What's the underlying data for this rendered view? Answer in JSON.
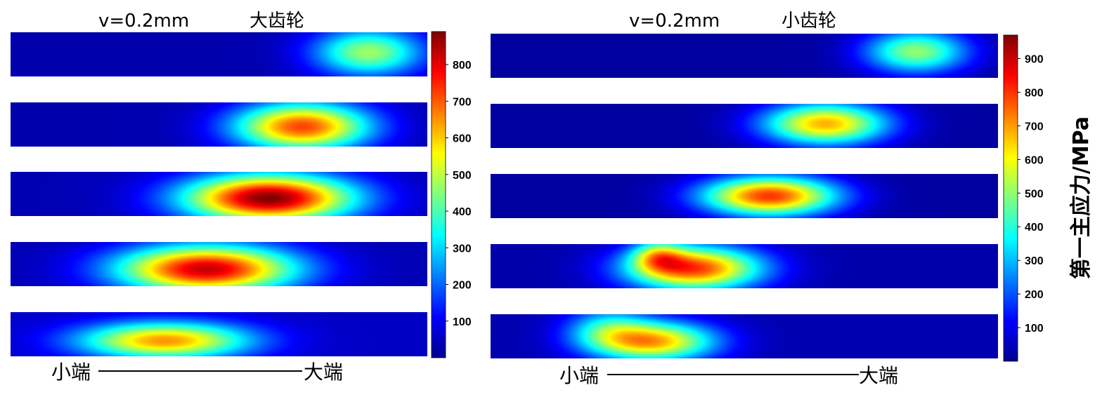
{
  "chart_data": [
    {
      "type": "heatmap",
      "title_speed": "v=0.2mm",
      "title_gear": "大齿轮",
      "colorbar_ticks": [
        100,
        200,
        300,
        400,
        500,
        600,
        700,
        800
      ],
      "colorbar_range": [
        0,
        890
      ],
      "colormap": "jet",
      "end_left_label": "小端",
      "end_right_label": "大端",
      "rows": [
        {
          "hotspots": [
            {
              "x": 0.86,
              "y": 0.45,
              "peak": 470,
              "sx": 0.13,
              "sy": 0.55
            }
          ],
          "base": 40
        },
        {
          "hotspots": [
            {
              "x": 0.7,
              "y": 0.55,
              "peak": 720,
              "sx": 0.16,
              "sy": 0.55
            }
          ],
          "base": 40
        },
        {
          "hotspots": [
            {
              "x": 0.62,
              "y": 0.6,
              "peak": 890,
              "sx": 0.2,
              "sy": 0.55
            }
          ],
          "base": 45
        },
        {
          "hotspots": [
            {
              "x": 0.47,
              "y": 0.62,
              "peak": 830,
              "sx": 0.21,
              "sy": 0.55
            }
          ],
          "base": 45
        },
        {
          "hotspots": [
            {
              "x": 0.37,
              "y": 0.65,
              "peak": 650,
              "sx": 0.2,
              "sy": 0.42
            }
          ],
          "base": 60
        }
      ]
    },
    {
      "type": "heatmap",
      "title_speed": "v=0.2mm",
      "title_gear": "小齿轮",
      "colorbar_ticks": [
        100,
        200,
        300,
        400,
        500,
        600,
        700,
        800,
        900
      ],
      "colorbar_range": [
        0,
        970
      ],
      "colormap": "jet",
      "ylabel": "第一主应力/MPa",
      "end_left_label": "小端",
      "end_right_label": "大端",
      "rows": [
        {
          "hotspots": [
            {
              "x": 0.84,
              "y": 0.4,
              "peak": 500,
              "sx": 0.1,
              "sy": 0.5
            }
          ],
          "base": 30
        },
        {
          "hotspots": [
            {
              "x": 0.66,
              "y": 0.45,
              "peak": 680,
              "sx": 0.12,
              "sy": 0.48
            }
          ],
          "base": 30
        },
        {
          "hotspots": [
            {
              "x": 0.55,
              "y": 0.5,
              "peak": 800,
              "sx": 0.13,
              "sy": 0.45
            }
          ],
          "base": 30
        },
        {
          "hotspots": [
            {
              "x": 0.4,
              "y": 0.55,
              "peak": 800,
              "sx": 0.13,
              "sy": 0.5
            },
            {
              "x": 0.33,
              "y": 0.25,
              "peak": 380,
              "sx": 0.05,
              "sy": 0.35
            }
          ],
          "base": 40
        },
        {
          "hotspots": [
            {
              "x": 0.32,
              "y": 0.62,
              "peak": 680,
              "sx": 0.12,
              "sy": 0.45
            },
            {
              "x": 0.23,
              "y": 0.3,
              "peak": 300,
              "sx": 0.08,
              "sy": 0.5
            }
          ],
          "base": 45
        }
      ]
    }
  ]
}
